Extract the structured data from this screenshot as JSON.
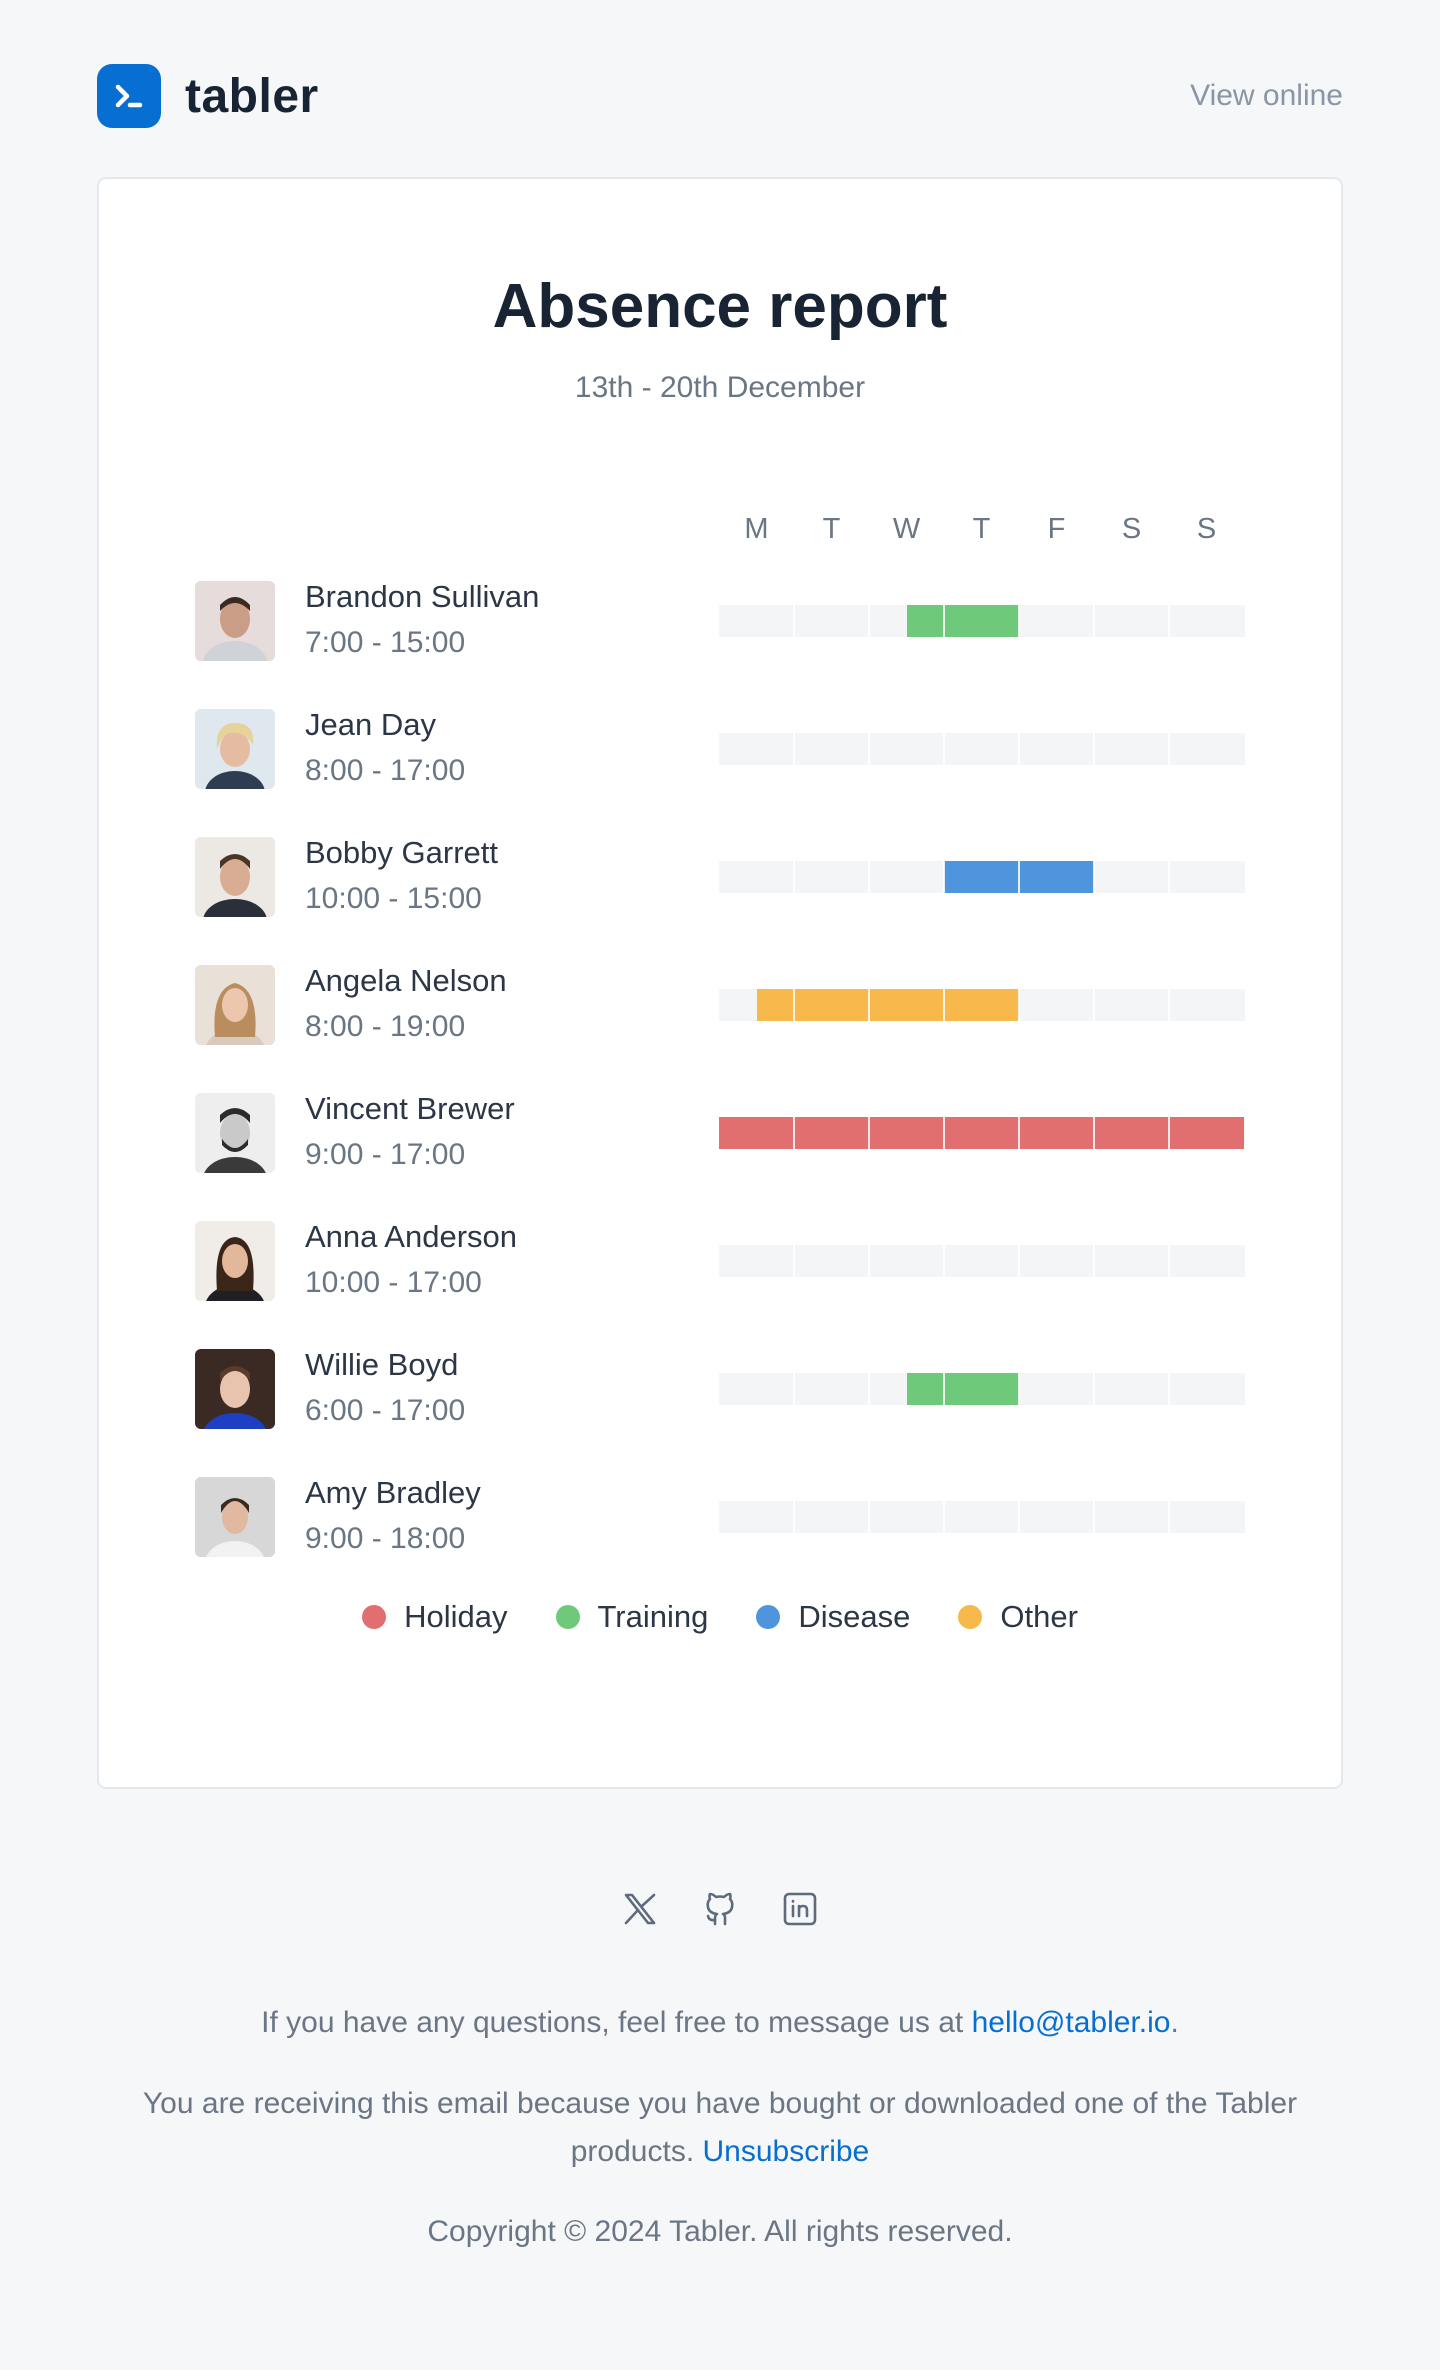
{
  "header": {
    "brand_name": "tabler",
    "view_online": "View online",
    "brand_color": "#066fd1"
  },
  "report": {
    "title": "Absence report",
    "subtitle": "13th - 20th December",
    "days": [
      "M",
      "T",
      "W",
      "T",
      "F",
      "S",
      "S"
    ],
    "people": [
      {
        "name": "Brandon Sullivan",
        "hours": "7:00 - 15:00",
        "absence": {
          "type": "training",
          "start_day": 2.5,
          "end_day": 4
        }
      },
      {
        "name": "Jean Day",
        "hours": "8:00 - 17:00",
        "absence": null
      },
      {
        "name": "Bobby Garrett",
        "hours": "10:00 - 15:00",
        "absence": {
          "type": "disease",
          "start_day": 3,
          "end_day": 5
        }
      },
      {
        "name": "Angela Nelson",
        "hours": "8:00 - 19:00",
        "absence": {
          "type": "other",
          "start_day": 0.5,
          "end_day": 4
        }
      },
      {
        "name": "Vincent Brewer",
        "hours": "9:00 - 17:00",
        "absence": {
          "type": "holiday",
          "start_day": 0,
          "end_day": 7
        }
      },
      {
        "name": "Anna Anderson",
        "hours": "10:00 - 17:00",
        "absence": null
      },
      {
        "name": "Willie Boyd",
        "hours": "6:00 - 17:00",
        "absence": {
          "type": "training",
          "start_day": 2.5,
          "end_day": 4
        }
      },
      {
        "name": "Amy Bradley",
        "hours": "9:00 - 18:00",
        "absence": null
      }
    ],
    "legend": [
      {
        "key": "holiday",
        "label": "Holiday",
        "color": "#e26f6f"
      },
      {
        "key": "training",
        "label": "Training",
        "color": "#6fc97a"
      },
      {
        "key": "disease",
        "label": "Disease",
        "color": "#4f95de"
      },
      {
        "key": "other",
        "label": "Other",
        "color": "#f7b94c"
      }
    ]
  },
  "footer": {
    "socials": [
      "x-icon",
      "github-icon",
      "linkedin-icon"
    ],
    "questions_text": "If you have any questions, feel free to message us at",
    "email": "hello@tabler.io",
    "email_suffix": ".",
    "receiving_text": "You are receiving this email because you have bought or downloaded one of the Tabler products.",
    "unsubscribe": "Unsubscribe",
    "copyright": "Copyright © 2024 Tabler. All rights reserved."
  }
}
